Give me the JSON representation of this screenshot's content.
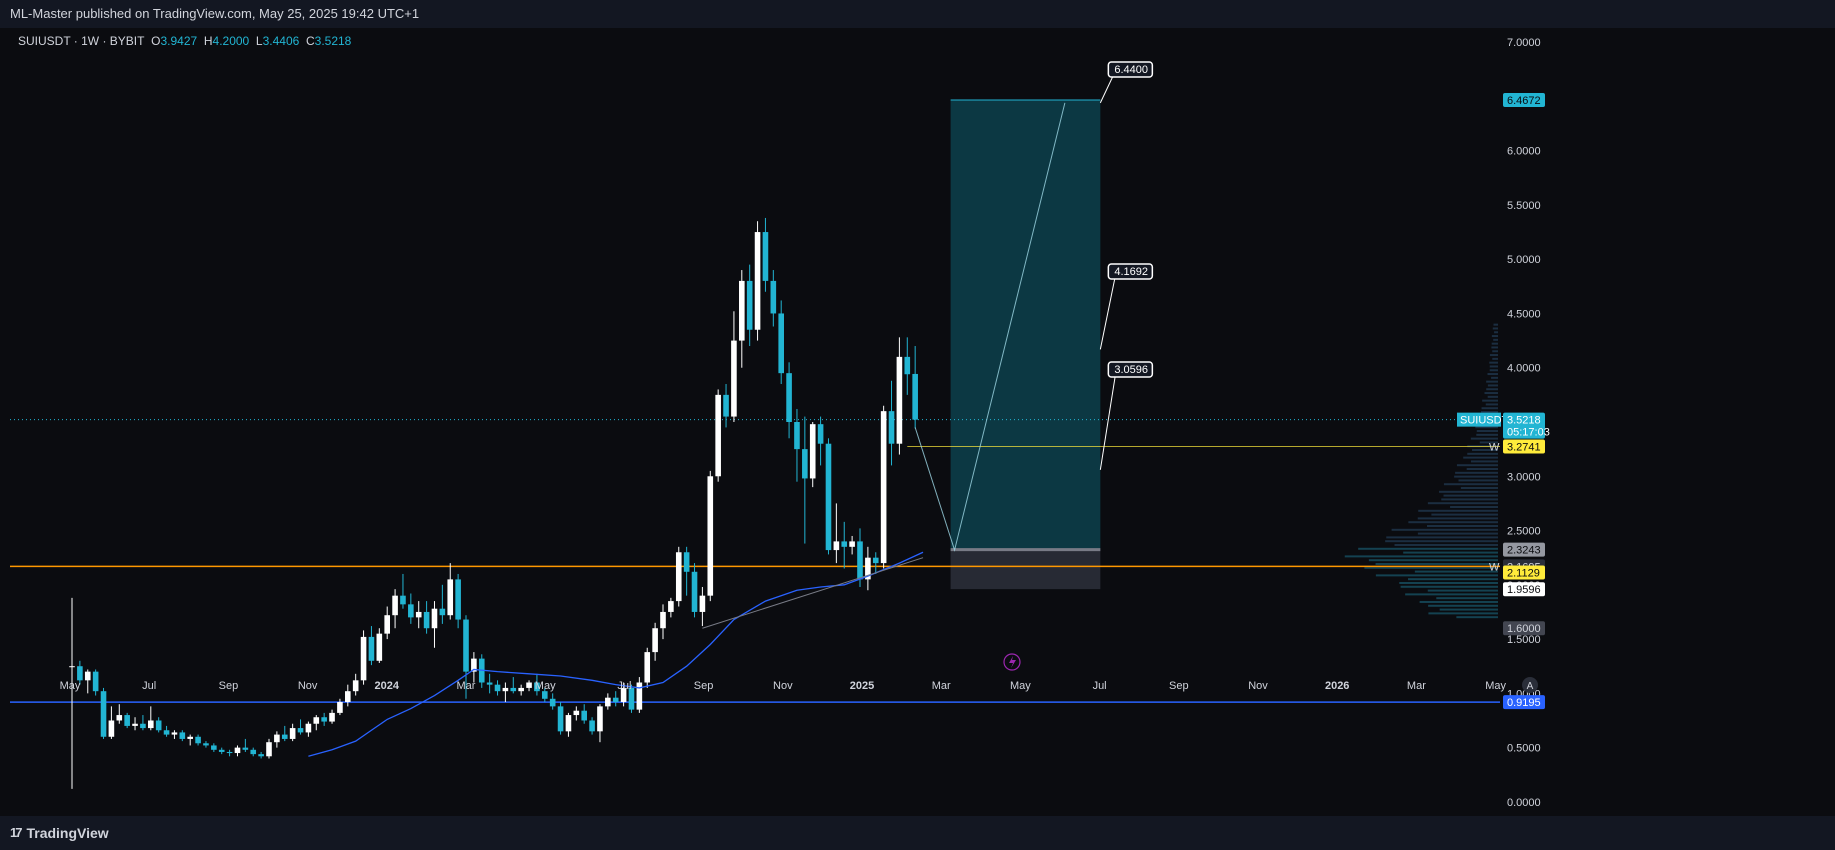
{
  "header": {
    "published": "ML-Master published on TradingView.com, May 25, 2025 19:42 UTC+1"
  },
  "legend": {
    "symbol": "SUIUSDT · 1W · BYBIT",
    "o_label": "O",
    "o": "3.9427",
    "h_label": "H",
    "h": "4.2000",
    "l_label": "L",
    "l": "3.4406",
    "c_label": "C",
    "c": "3.5218"
  },
  "footer": {
    "brand": "TradingView",
    "brand_mark": "17"
  },
  "colors": {
    "bull": "#ffffff",
    "bear": "#22b5d3",
    "ma": "#2962ff",
    "orange_line": "#ff9800",
    "blue_line": "#2962ff",
    "target_zone": "#0d3b47",
    "stop_zone": "#2a2e39"
  },
  "chart_data": {
    "type": "candlestick",
    "y_ticks": [
      "7.0000",
      "6.5000",
      "6.0000",
      "5.5000",
      "5.0000",
      "4.5000",
      "4.0000",
      "3.5000",
      "3.0000",
      "2.5000",
      "2.0000",
      "1.5000",
      "1.0000",
      "0.5000",
      "0.0000"
    ],
    "ylim": [
      -0.13,
      7.13
    ],
    "x_ticks": [
      "May",
      "Jul",
      "Sep",
      "Nov",
      "2024",
      "Mar",
      "May",
      "Jul",
      "Sep",
      "Nov",
      "2025",
      "Mar",
      "May",
      "Jul",
      "Sep",
      "Nov",
      "2026",
      "Mar",
      "May"
    ],
    "current_price": {
      "symbol": "SUIUSDT",
      "price": "3.5218",
      "countdown": "05:17:03"
    },
    "price_labels": [
      {
        "price": "6.4672",
        "bg": "#22b5d3",
        "fg": "#0b0c10"
      },
      {
        "price": "3.2741",
        "bg": "#ffeb3b",
        "fg": "#0b0c10",
        "prefix": "W"
      },
      {
        "price": "2.3243",
        "bg": "#9598a1",
        "fg": "#0b0c10"
      },
      {
        "price": "2.1695",
        "bg": "#2a2e39",
        "fg": "#d1d4dc",
        "prefix": "W"
      },
      {
        "price": "2.1129",
        "bg": "#ffeb3b",
        "fg": "#0b0c10"
      },
      {
        "price": "1.9596",
        "bg": "#ffffff",
        "fg": "#0b0c10"
      },
      {
        "price": "1.6000",
        "bg": "#434651",
        "fg": "#d1d4dc"
      },
      {
        "price": "0.9195",
        "bg": "#2962ff",
        "fg": "#ffffff"
      }
    ],
    "target_callouts": [
      "6.4400",
      "4.1692",
      "3.0596"
    ],
    "horizontal_lines": [
      {
        "price": 2.1695,
        "color": "#ff9800"
      },
      {
        "price": 0.9195,
        "color": "#2962ff"
      }
    ],
    "position_tool": {
      "entry": 2.3243,
      "target": 6.4672,
      "stop": 1.96
    },
    "candles": [
      [
        1.25,
        1.88,
        0.12,
        1.25
      ],
      [
        1.25,
        1.3,
        1.08,
        1.12
      ],
      [
        1.12,
        1.22,
        1.0,
        1.2
      ],
      [
        1.2,
        1.22,
        0.98,
        1.02
      ],
      [
        1.02,
        1.05,
        0.58,
        0.6
      ],
      [
        0.6,
        0.88,
        0.58,
        0.75
      ],
      [
        0.75,
        0.9,
        0.72,
        0.8
      ],
      [
        0.8,
        0.82,
        0.68,
        0.7
      ],
      [
        0.7,
        0.78,
        0.66,
        0.72
      ],
      [
        0.72,
        0.8,
        0.66,
        0.68
      ],
      [
        0.68,
        0.88,
        0.66,
        0.75
      ],
      [
        0.75,
        0.78,
        0.64,
        0.66
      ],
      [
        0.66,
        0.7,
        0.6,
        0.62
      ],
      [
        0.62,
        0.66,
        0.58,
        0.64
      ],
      [
        0.64,
        0.66,
        0.56,
        0.58
      ],
      [
        0.58,
        0.62,
        0.52,
        0.6
      ],
      [
        0.6,
        0.62,
        0.52,
        0.54
      ],
      [
        0.54,
        0.56,
        0.5,
        0.52
      ],
      [
        0.52,
        0.54,
        0.46,
        0.48
      ],
      [
        0.48,
        0.5,
        0.44,
        0.46
      ],
      [
        0.46,
        0.48,
        0.42,
        0.45
      ],
      [
        0.45,
        0.52,
        0.42,
        0.5
      ],
      [
        0.5,
        0.58,
        0.46,
        0.48
      ],
      [
        0.48,
        0.5,
        0.42,
        0.44
      ],
      [
        0.44,
        0.46,
        0.4,
        0.42
      ],
      [
        0.42,
        0.58,
        0.4,
        0.55
      ],
      [
        0.55,
        0.65,
        0.5,
        0.62
      ],
      [
        0.62,
        0.7,
        0.56,
        0.58
      ],
      [
        0.58,
        0.72,
        0.56,
        0.68
      ],
      [
        0.68,
        0.76,
        0.62,
        0.64
      ],
      [
        0.64,
        0.74,
        0.6,
        0.72
      ],
      [
        0.72,
        0.8,
        0.66,
        0.78
      ],
      [
        0.78,
        0.82,
        0.7,
        0.74
      ],
      [
        0.74,
        0.85,
        0.72,
        0.82
      ],
      [
        0.82,
        0.95,
        0.8,
        0.92
      ],
      [
        0.92,
        1.08,
        0.88,
        1.02
      ],
      [
        1.02,
        1.18,
        0.98,
        1.12
      ],
      [
        1.12,
        1.58,
        1.08,
        1.52
      ],
      [
        1.52,
        1.62,
        1.26,
        1.3
      ],
      [
        1.3,
        1.6,
        1.28,
        1.55
      ],
      [
        1.55,
        1.8,
        1.5,
        1.72
      ],
      [
        1.72,
        1.96,
        1.6,
        1.9
      ],
      [
        1.9,
        2.1,
        1.78,
        1.82
      ],
      [
        1.82,
        1.92,
        1.64,
        1.7
      ],
      [
        1.7,
        1.85,
        1.6,
        1.75
      ],
      [
        1.75,
        1.85,
        1.55,
        1.6
      ],
      [
        1.6,
        1.85,
        1.42,
        1.78
      ],
      [
        1.78,
        2.0,
        1.64,
        1.72
      ],
      [
        1.72,
        2.2,
        1.68,
        2.05
      ],
      [
        2.05,
        2.1,
        1.6,
        1.68
      ],
      [
        1.68,
        1.72,
        0.95,
        1.2
      ],
      [
        1.2,
        1.38,
        1.1,
        1.32
      ],
      [
        1.32,
        1.36,
        1.05,
        1.1
      ],
      [
        1.1,
        1.18,
        1.0,
        1.08
      ],
      [
        1.08,
        1.12,
        0.98,
        1.02
      ],
      [
        1.02,
        1.1,
        0.92,
        1.05
      ],
      [
        1.05,
        1.15,
        1.0,
        1.02
      ],
      [
        1.02,
        1.08,
        0.98,
        1.05
      ],
      [
        1.05,
        1.12,
        1.02,
        1.1
      ],
      [
        1.1,
        1.18,
        0.98,
        1.02
      ],
      [
        1.02,
        1.05,
        0.92,
        0.95
      ],
      [
        0.95,
        1.0,
        0.85,
        0.88
      ],
      [
        0.88,
        0.92,
        0.62,
        0.65
      ],
      [
        0.65,
        0.82,
        0.6,
        0.8
      ],
      [
        0.8,
        0.88,
        0.75,
        0.84
      ],
      [
        0.84,
        0.9,
        0.72,
        0.75
      ],
      [
        0.75,
        0.78,
        0.62,
        0.65
      ],
      [
        0.65,
        0.9,
        0.55,
        0.88
      ],
      [
        0.88,
        1.0,
        0.85,
        0.96
      ],
      [
        0.96,
        1.02,
        0.88,
        0.92
      ],
      [
        0.92,
        1.1,
        0.88,
        1.05
      ],
      [
        1.05,
        1.08,
        0.82,
        0.85
      ],
      [
        0.85,
        1.15,
        0.82,
        1.1
      ],
      [
        1.1,
        1.42,
        1.05,
        1.38
      ],
      [
        1.38,
        1.65,
        1.3,
        1.6
      ],
      [
        1.6,
        1.82,
        1.5,
        1.75
      ],
      [
        1.75,
        1.88,
        1.7,
        1.85
      ],
      [
        1.85,
        2.35,
        1.8,
        2.3
      ],
      [
        2.3,
        2.35,
        1.9,
        2.12
      ],
      [
        2.12,
        2.2,
        1.7,
        1.75
      ],
      [
        1.75,
        1.98,
        1.62,
        1.9
      ],
      [
        1.9,
        3.05,
        1.85,
        3.0
      ],
      [
        3.0,
        3.8,
        2.95,
        3.75
      ],
      [
        3.75,
        3.85,
        3.45,
        3.55
      ],
      [
        3.55,
        4.52,
        3.5,
        4.25
      ],
      [
        4.25,
        4.9,
        4.0,
        4.8
      ],
      [
        4.8,
        4.95,
        4.2,
        4.35
      ],
      [
        4.35,
        5.35,
        4.25,
        5.25
      ],
      [
        5.25,
        5.38,
        4.7,
        4.8
      ],
      [
        4.8,
        4.9,
        4.38,
        4.5
      ],
      [
        4.5,
        4.62,
        3.85,
        3.95
      ],
      [
        3.95,
        4.05,
        3.35,
        3.5
      ],
      [
        3.5,
        3.62,
        2.95,
        3.25
      ],
      [
        3.25,
        3.55,
        2.38,
        2.98
      ],
      [
        2.98,
        3.5,
        2.9,
        3.48
      ],
      [
        3.48,
        3.55,
        3.1,
        3.3
      ],
      [
        3.3,
        3.35,
        2.28,
        2.32
      ],
      [
        2.32,
        2.75,
        2.2,
        2.4
      ],
      [
        2.4,
        2.58,
        2.15,
        2.35
      ],
      [
        2.35,
        2.45,
        2.28,
        2.4
      ],
      [
        2.4,
        2.52,
        1.98,
        2.05
      ],
      [
        2.05,
        2.35,
        1.95,
        2.25
      ],
      [
        2.25,
        2.3,
        2.1,
        2.2
      ],
      [
        2.2,
        3.65,
        2.15,
        3.6
      ],
      [
        3.6,
        3.88,
        3.1,
        3.3
      ],
      [
        3.3,
        4.28,
        3.2,
        4.1
      ],
      [
        4.1,
        4.28,
        3.75,
        3.94
      ],
      [
        3.9427,
        4.2,
        3.4406,
        3.5218
      ]
    ],
    "ma_line": [
      [
        30,
        0.42
      ],
      [
        33,
        0.48
      ],
      [
        36,
        0.56
      ],
      [
        38,
        0.66
      ],
      [
        40,
        0.76
      ],
      [
        43,
        0.86
      ],
      [
        46,
        0.98
      ],
      [
        49,
        1.12
      ],
      [
        51,
        1.22
      ],
      [
        54,
        1.2
      ],
      [
        58,
        1.18
      ],
      [
        62,
        1.16
      ],
      [
        66,
        1.12
      ],
      [
        69,
        1.08
      ],
      [
        72,
        1.05
      ],
      [
        75,
        1.1
      ],
      [
        78,
        1.25
      ],
      [
        81,
        1.45
      ],
      [
        84,
        1.68
      ],
      [
        88,
        1.85
      ],
      [
        92,
        1.95
      ],
      [
        95,
        1.98
      ],
      [
        98,
        2.0
      ],
      [
        101,
        2.08
      ],
      [
        105,
        2.2
      ],
      [
        108,
        2.3
      ]
    ],
    "trend_line": [
      [
        80,
        1.6
      ],
      [
        108,
        2.25
      ]
    ],
    "projection_path": [
      [
        107,
        3.45
      ],
      [
        112,
        2.32
      ],
      [
        126,
        6.44
      ]
    ]
  }
}
